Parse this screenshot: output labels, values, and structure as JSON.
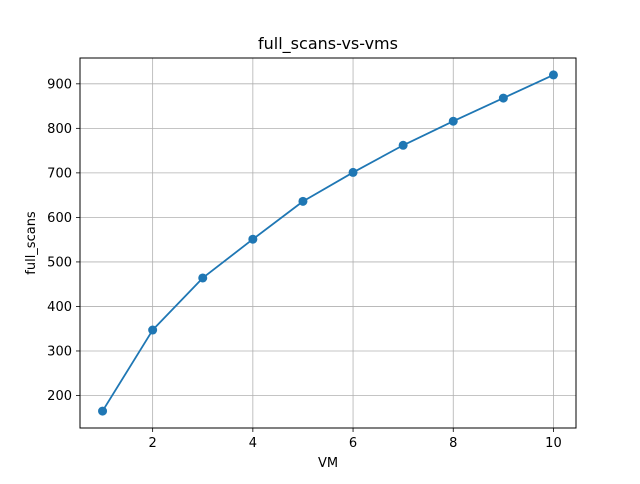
{
  "chart_data": {
    "type": "line",
    "title": "full_scans-vs-vms",
    "xlabel": "VM",
    "ylabel": "full_scans",
    "x": [
      1,
      2,
      3,
      4,
      5,
      6,
      7,
      8,
      9,
      10
    ],
    "series": [
      {
        "values": [
          165,
          347,
          464,
          551,
          636,
          701,
          762,
          816,
          868,
          920
        ]
      }
    ],
    "xlim": [
      0.55,
      10.45
    ],
    "ylim": [
      127,
      958
    ],
    "xticks": [
      2,
      4,
      6,
      8,
      10
    ],
    "yticks": [
      200,
      300,
      400,
      500,
      600,
      700,
      800,
      900
    ],
    "grid": true,
    "line_color": "#1f77b4",
    "marker": "circle"
  }
}
